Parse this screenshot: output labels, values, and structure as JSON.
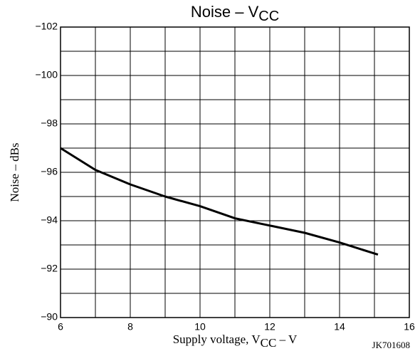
{
  "chart_data": {
    "type": "line",
    "title": "Noise – V",
    "title_subscript": "CC",
    "x_label": "Supply voltage, V",
    "x_label_subscript": "CC",
    "x_label_suffix": " – V",
    "y_label": "Noise – dBs",
    "figure_code": "JK701608",
    "x": [
      6,
      7,
      8,
      9,
      10,
      11,
      12,
      13,
      14,
      15.1
    ],
    "series": [
      {
        "color": "#000000",
        "values": [
          -97,
          -96.1,
          -95.5,
          -95.0,
          -94.6,
          -94.1,
          -93.8,
          -93.5,
          -93.1,
          -92.6
        ]
      }
    ],
    "xlim": [
      6,
      16
    ],
    "ylim": [
      -90,
      -102
    ],
    "xticks": [
      6,
      8,
      10,
      12,
      14,
      16
    ],
    "yticks": [
      {
        "value": -102,
        "label": "−102"
      },
      {
        "value": -100,
        "label": "−100"
      },
      {
        "value": -98,
        "label": "−98"
      },
      {
        "value": -96,
        "label": "−96"
      },
      {
        "value": -94,
        "label": "−94"
      },
      {
        "value": -92,
        "label": "−92"
      },
      {
        "value": -90,
        "label": "−90"
      }
    ],
    "x_grid": [
      6,
      7,
      8,
      9,
      10,
      11,
      12,
      13,
      14,
      15,
      16
    ],
    "y_grid": [
      -102,
      -101,
      -100,
      -99,
      -98,
      -97,
      -96,
      -95,
      -94,
      -93,
      -92,
      -91,
      -90
    ],
    "grid": true
  }
}
